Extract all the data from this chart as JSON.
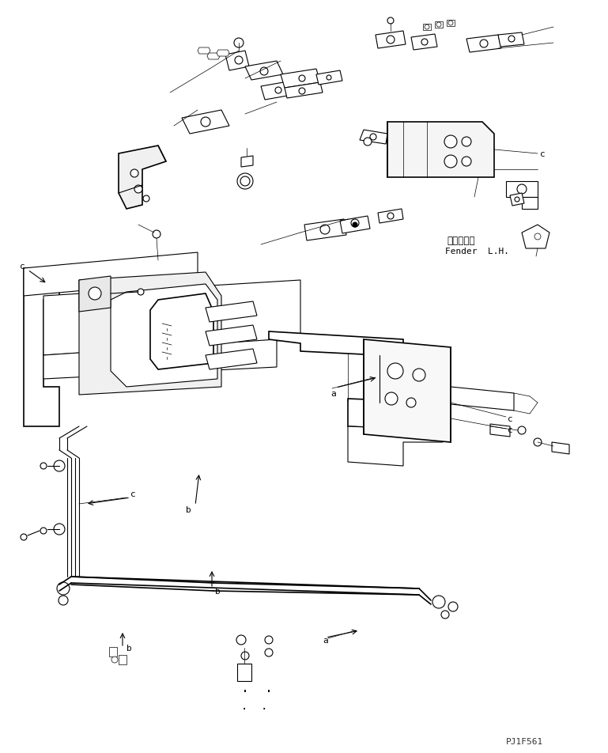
{
  "figure_width": 7.69,
  "figure_height": 9.53,
  "dpi": 100,
  "bg_color": "#ffffff",
  "line_color": "#000000",
  "line_width": 0.8,
  "thin_line": 0.5,
  "thick_line": 1.2,
  "text_label_fender_jp": "フェンダ左",
  "text_label_fender_en": "Fender  L.H.",
  "text_code": "PJ1F561",
  "label_a": "a",
  "label_b": "b",
  "label_c": "c"
}
